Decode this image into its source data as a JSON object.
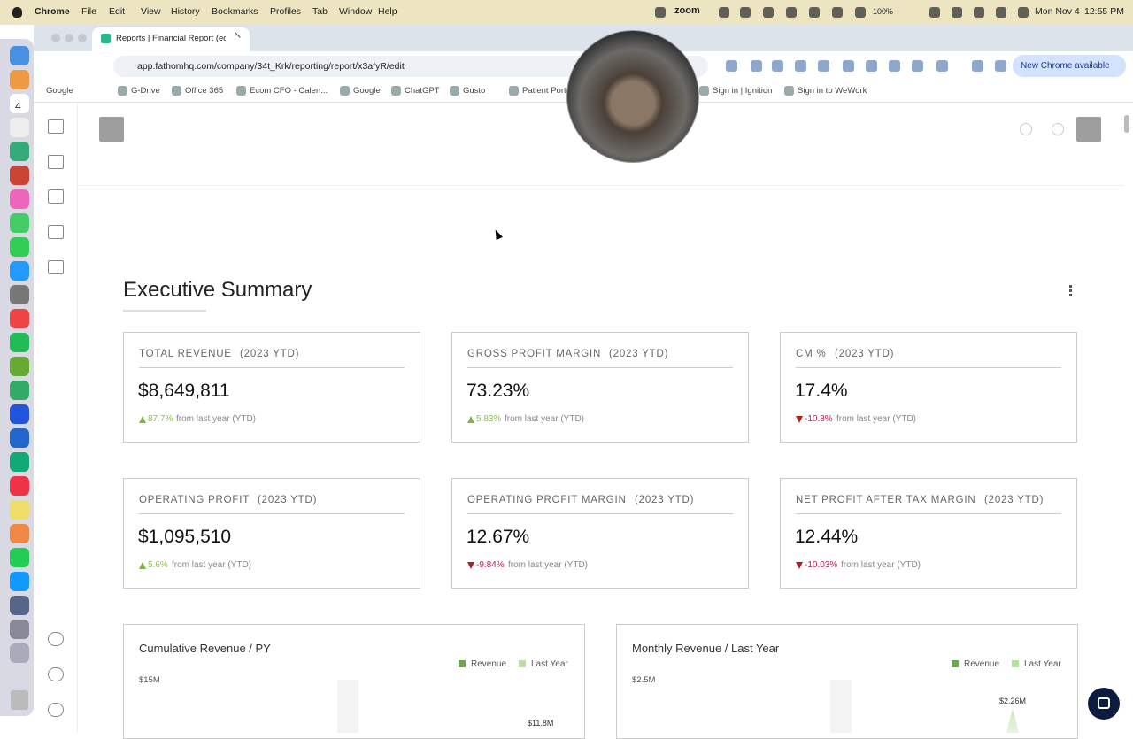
{
  "menubar": {
    "items": [
      "Chrome",
      "File",
      "Edit",
      "View",
      "History",
      "Bookmarks",
      "Profiles",
      "Tab",
      "Window",
      "Help"
    ],
    "zoom": "zoom",
    "battery": "100%",
    "date": "Mon Nov 4",
    "time": "12:55 PM"
  },
  "dock": {
    "calendar_day": "4"
  },
  "browser": {
    "tab_title": "Reports | Financial Report (ed",
    "url": "app.fathomhq.com/company/34t_Krk/reporting/report/x3afyR/edit",
    "update_button": "New Chrome available",
    "bookmarks": [
      "Google",
      "G-Drive",
      "Office 365",
      "Ecom CFO - Calen...",
      "Google",
      "ChatGPT",
      "Gusto",
      "Patient Portal -",
      "Sign in | Ignition",
      "Sign in to WeWork"
    ]
  },
  "report": {
    "title": "Executive Summary",
    "kpis": [
      {
        "label": "TOTAL REVENUE",
        "period": "(2023 YTD)",
        "value": "$8,649,811",
        "change": "87.7%",
        "direction": "up",
        "note": "from last year (YTD)"
      },
      {
        "label": "GROSS PROFIT MARGIN",
        "period": "(2023 YTD)",
        "value": "73.23%",
        "change": "5.83%",
        "direction": "up",
        "note": "from last year (YTD)"
      },
      {
        "label": "CM %",
        "period": "(2023 YTD)",
        "value": "17.4%",
        "change": "-10.8%",
        "direction": "down",
        "note": "from last year (YTD)"
      },
      {
        "label": "OPERATING PROFIT",
        "period": "(2023 YTD)",
        "value": "$1,095,510",
        "change": "5.6%",
        "direction": "up",
        "note": "from last year (YTD)"
      },
      {
        "label": "OPERATING PROFIT MARGIN",
        "period": "(2023 YTD)",
        "value": "12.67%",
        "change": "-9.84%",
        "direction": "down",
        "note": "from last year (YTD)"
      },
      {
        "label": "NET PROFIT AFTER TAX MARGIN",
        "period": "(2023 YTD)",
        "value": "12.44%",
        "change": "-10.03%",
        "direction": "down",
        "note": "from last year (YTD)"
      }
    ],
    "charts": [
      {
        "title": "Cumulative Revenue / PY",
        "legend": [
          "Revenue",
          "Last Year"
        ],
        "axis_top": "$15M",
        "annotation": "$11.8M"
      },
      {
        "title": "Monthly Revenue / Last Year",
        "legend": [
          "Revenue",
          "Last Year"
        ],
        "axis_top": "$2.5M",
        "annotation": "$2.26M"
      }
    ]
  }
}
